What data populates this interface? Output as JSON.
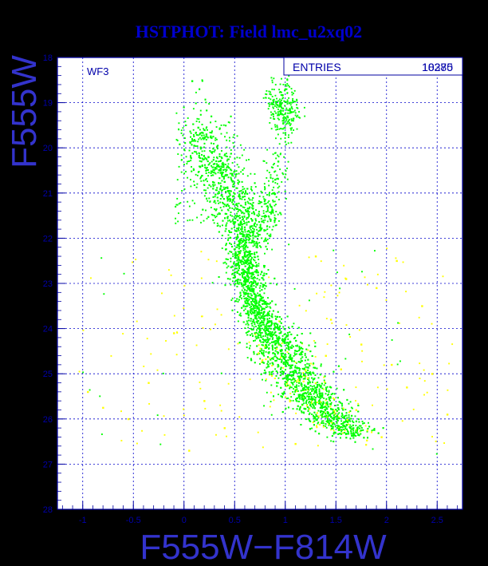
{
  "chart_data": {
    "type": "scatter",
    "title": "HSTPHOT: Field lmc_u2xq02",
    "xlabel": "F555W−F814W",
    "ylabel": "F555W",
    "xlim": [
      -1.25,
      2.75
    ],
    "ylim": [
      28,
      18
    ],
    "y_inverted": true,
    "grid": true,
    "x_ticks": [
      "-1",
      "-0.5",
      "0",
      "0.5",
      "1",
      "1.5",
      "2",
      "2.5"
    ],
    "y_ticks": [
      "18",
      "19",
      "20",
      "21",
      "22",
      "23",
      "24",
      "25",
      "26",
      "27",
      "28"
    ],
    "annotations": {
      "chip_label": "WF3",
      "stats_label": "ENTRIES",
      "stats_value_a": "10285",
      "stats_value_b": "18370"
    },
    "series": [
      {
        "color": "#00ff00",
        "points": [
          [
            0.08,
            18.52
          ],
          [
            0.14,
            19.55
          ],
          [
            0.22,
            19.7
          ],
          [
            0.1,
            19.95
          ],
          [
            0.24,
            20.2
          ],
          [
            0.3,
            20.35
          ],
          [
            0.36,
            20.55
          ],
          [
            0.4,
            20.75
          ],
          [
            0.44,
            20.95
          ],
          [
            0.48,
            21.15
          ],
          [
            0.52,
            21.35
          ],
          [
            0.55,
            21.55
          ],
          [
            0.57,
            21.75
          ],
          [
            0.58,
            21.95
          ],
          [
            0.59,
            22.15
          ],
          [
            0.6,
            22.35
          ],
          [
            0.61,
            22.55
          ],
          [
            0.62,
            22.75
          ],
          [
            0.63,
            22.95
          ],
          [
            0.65,
            23.15
          ],
          [
            0.68,
            23.35
          ],
          [
            0.72,
            23.55
          ],
          [
            0.76,
            23.75
          ],
          [
            0.8,
            23.95
          ],
          [
            0.85,
            24.15
          ],
          [
            0.9,
            24.35
          ],
          [
            0.96,
            24.55
          ],
          [
            1.02,
            24.75
          ],
          [
            1.08,
            24.95
          ],
          [
            1.14,
            25.15
          ],
          [
            1.2,
            25.35
          ],
          [
            1.27,
            25.55
          ],
          [
            1.35,
            25.75
          ],
          [
            1.45,
            25.95
          ],
          [
            1.58,
            26.15
          ],
          [
            1.72,
            26.35
          ],
          [
            0.92,
            19.05
          ],
          [
            0.95,
            19.25
          ],
          [
            0.98,
            19.45
          ],
          [
            1.02,
            19.3
          ],
          [
            1.05,
            19.2
          ],
          [
            1.08,
            19.35
          ],
          [
            0.88,
            18.95
          ],
          [
            1.0,
            18.7
          ],
          [
            0.93,
            20.3
          ],
          [
            0.9,
            20.7
          ],
          [
            0.88,
            21.0
          ],
          [
            0.86,
            21.3
          ],
          [
            0.8,
            21.5
          ],
          [
            0.76,
            21.8
          ]
        ]
      },
      {
        "color": "#ffff00",
        "points": [
          [
            -0.95,
            25.4
          ],
          [
            -0.8,
            25.75
          ],
          [
            -0.55,
            26.0
          ],
          [
            -0.35,
            25.2
          ],
          [
            -0.1,
            24.1
          ],
          [
            0.05,
            26.7
          ],
          [
            0.2,
            25.6
          ],
          [
            1.3,
            22.4
          ],
          [
            1.45,
            23.8
          ],
          [
            1.6,
            22.9
          ],
          [
            1.75,
            24.35
          ],
          [
            1.9,
            23.1
          ],
          [
            2.05,
            24.8
          ],
          [
            2.2,
            25.3
          ],
          [
            2.35,
            23.5
          ],
          [
            2.45,
            25.0
          ],
          [
            2.6,
            25.9
          ],
          [
            1.95,
            26.4
          ],
          [
            1.1,
            26.55
          ],
          [
            1.4,
            24.6
          ],
          [
            1.55,
            24.9
          ],
          [
            1.7,
            25.8
          ],
          [
            2.1,
            22.5
          ],
          [
            0.4,
            26.2
          ]
        ]
      }
    ]
  }
}
